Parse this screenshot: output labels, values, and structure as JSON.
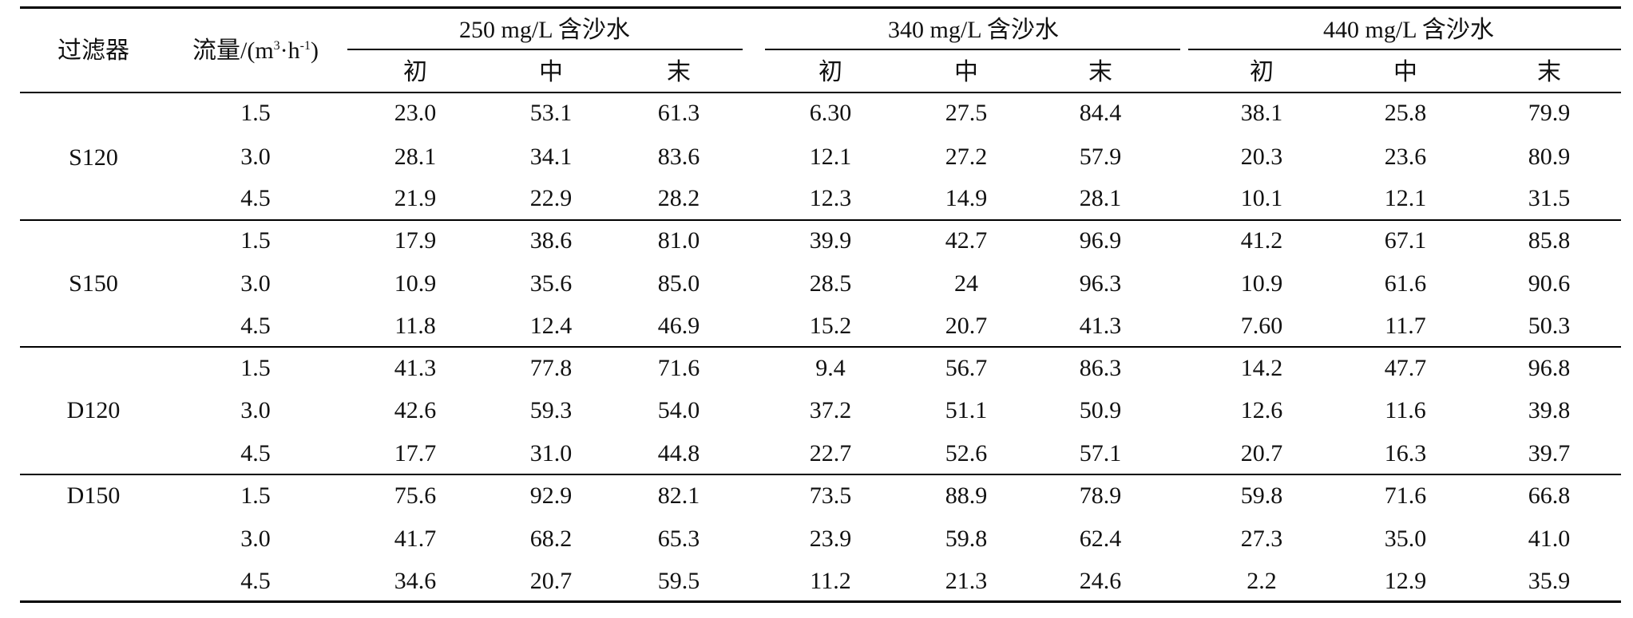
{
  "table": {
    "headers": {
      "filter": "过滤器",
      "flow_prefix": "流量/(m",
      "flow_sup1": "3",
      "flow_mid": "·h",
      "flow_sup2": "-1",
      "flow_suffix": ")",
      "groups": [
        "250 mg/L 含沙水",
        "340 mg/L 含沙水",
        "440 mg/L 含沙水"
      ],
      "stages": [
        "初",
        "中",
        "末"
      ]
    },
    "sections": [
      {
        "filter": "S120",
        "rows": [
          [
            "1.5",
            "23.0",
            "53.1",
            "61.3",
            "6.30",
            "27.5",
            "84.4",
            "38.1",
            "25.8",
            "79.9"
          ],
          [
            "3.0",
            "28.1",
            "34.1",
            "83.6",
            "12.1",
            "27.2",
            "57.9",
            "20.3",
            "23.6",
            "80.9"
          ],
          [
            "4.5",
            "21.9",
            "22.9",
            "28.2",
            "12.3",
            "14.9",
            "28.1",
            "10.1",
            "12.1",
            "31.5"
          ]
        ]
      },
      {
        "filter": "S150",
        "rows": [
          [
            "1.5",
            "17.9",
            "38.6",
            "81.0",
            "39.9",
            "42.7",
            "96.9",
            "41.2",
            "67.1",
            "85.8"
          ],
          [
            "3.0",
            "10.9",
            "35.6",
            "85.0",
            "28.5",
            "24",
            "96.3",
            "10.9",
            "61.6",
            "90.6"
          ],
          [
            "4.5",
            "11.8",
            "12.4",
            "46.9",
            "15.2",
            "20.7",
            "41.3",
            "7.60",
            "11.7",
            "50.3"
          ]
        ]
      },
      {
        "filter": "D120",
        "rows": [
          [
            "1.5",
            "41.3",
            "77.8",
            "71.6",
            "9.4",
            "56.7",
            "86.3",
            "14.2",
            "47.7",
            "96.8"
          ],
          [
            "3.0",
            "42.6",
            "59.3",
            "54.0",
            "37.2",
            "51.1",
            "50.9",
            "12.6",
            "11.6",
            "39.8"
          ],
          [
            "4.5",
            "17.7",
            "31.0",
            "44.8",
            "22.7",
            "52.6",
            "57.1",
            "20.7",
            "16.3",
            "39.7"
          ]
        ]
      },
      {
        "filter": "D150",
        "rows": [
          [
            "1.5",
            "75.6",
            "92.9",
            "82.1",
            "73.5",
            "88.9",
            "78.9",
            "59.8",
            "71.6",
            "66.8"
          ],
          [
            "3.0",
            "41.7",
            "68.2",
            "65.3",
            "23.9",
            "59.8",
            "62.4",
            "27.3",
            "35.0",
            "41.0"
          ],
          [
            "4.5",
            "34.6",
            "20.7",
            "59.5",
            "11.2",
            "21.3",
            "24.6",
            "2.2",
            "12.9",
            "35.9"
          ]
        ]
      }
    ]
  }
}
